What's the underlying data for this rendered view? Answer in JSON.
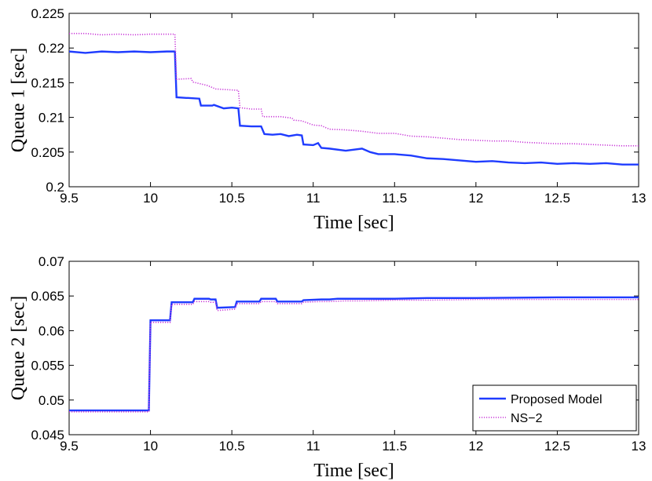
{
  "chart_data": [
    {
      "type": "line",
      "ylabel": "Queue 1 [sec]",
      "xlabel": "Time [sec]",
      "xlim": [
        9.5,
        13
      ],
      "ylim": [
        0.2,
        0.225
      ],
      "xticks": [
        9.5,
        10,
        10.5,
        11,
        11.5,
        12,
        12.5,
        13
      ],
      "xtick_labels": [
        "9.5",
        "10",
        "10.5",
        "11",
        "11.5",
        "12",
        "12.5",
        "13"
      ],
      "yticks": [
        0.2,
        0.205,
        0.21,
        0.215,
        0.22,
        0.225
      ],
      "ytick_labels": [
        "0.2",
        "0.205",
        "0.21",
        "0.215",
        "0.22",
        "0.225"
      ],
      "series": [
        {
          "name": "Proposed Model",
          "color": "#1f3cff",
          "style": "solid",
          "x": [
            9.5,
            9.6,
            9.7,
            9.8,
            9.9,
            10.0,
            10.1,
            10.15,
            10.16,
            10.22,
            10.23,
            10.3,
            10.31,
            10.38,
            10.39,
            10.45,
            10.5,
            10.54,
            10.55,
            10.62,
            10.63,
            10.68,
            10.7,
            10.75,
            10.8,
            10.85,
            10.9,
            10.93,
            10.94,
            11.0,
            11.03,
            11.05,
            11.1,
            11.2,
            11.3,
            11.35,
            11.4,
            11.5,
            11.6,
            11.7,
            11.8,
            11.9,
            12.0,
            12.1,
            12.2,
            12.3,
            12.4,
            12.5,
            12.6,
            12.7,
            12.8,
            12.9,
            13.0
          ],
          "y": [
            0.2195,
            0.2193,
            0.2195,
            0.2194,
            0.2195,
            0.2194,
            0.2195,
            0.2195,
            0.2129,
            0.2128,
            0.2128,
            0.2127,
            0.2117,
            0.2117,
            0.2118,
            0.2113,
            0.2114,
            0.2113,
            0.2088,
            0.2087,
            0.2087,
            0.2087,
            0.2076,
            0.2075,
            0.2076,
            0.2073,
            0.2075,
            0.2074,
            0.2061,
            0.206,
            0.2063,
            0.2056,
            0.2055,
            0.2052,
            0.2055,
            0.205,
            0.2047,
            0.2047,
            0.2045,
            0.2041,
            0.204,
            0.2038,
            0.2036,
            0.2037,
            0.2035,
            0.2034,
            0.2035,
            0.2033,
            0.2034,
            0.2033,
            0.2034,
            0.2032,
            0.2032
          ]
        },
        {
          "name": "NS-2",
          "color": "#c838d8",
          "style": "dotted",
          "x": [
            9.5,
            9.6,
            9.7,
            9.8,
            9.9,
            10.0,
            10.1,
            10.15,
            10.16,
            10.25,
            10.26,
            10.35,
            10.4,
            10.54,
            10.55,
            10.62,
            10.68,
            10.69,
            10.8,
            10.87,
            10.88,
            10.93,
            11.0,
            11.05,
            11.1,
            11.2,
            11.3,
            11.4,
            11.5,
            11.6,
            11.7,
            11.8,
            11.9,
            12.0,
            12.1,
            12.2,
            12.3,
            12.4,
            12.5,
            12.6,
            12.7,
            12.8,
            12.9,
            13.0
          ],
          "y": [
            0.2221,
            0.2221,
            0.2219,
            0.222,
            0.2219,
            0.222,
            0.222,
            0.222,
            0.2155,
            0.2156,
            0.2151,
            0.2146,
            0.2141,
            0.2139,
            0.2114,
            0.2112,
            0.2112,
            0.2101,
            0.2101,
            0.2099,
            0.2096,
            0.2095,
            0.2089,
            0.2088,
            0.2083,
            0.2082,
            0.208,
            0.2077,
            0.2077,
            0.2073,
            0.2072,
            0.207,
            0.2068,
            0.2067,
            0.2066,
            0.2066,
            0.2064,
            0.2063,
            0.2062,
            0.2062,
            0.2061,
            0.206,
            0.2059,
            0.2059
          ]
        }
      ]
    },
    {
      "type": "line",
      "ylabel": "Queue 2 [sec]",
      "xlabel": "Time [sec]",
      "xlim": [
        9.5,
        13
      ],
      "ylim": [
        0.045,
        0.07
      ],
      "xticks": [
        9.5,
        10,
        10.5,
        11,
        11.5,
        12,
        12.5,
        13
      ],
      "xtick_labels": [
        "9.5",
        "10",
        "10.5",
        "11",
        "11.5",
        "12",
        "12.5",
        "13"
      ],
      "yticks": [
        0.045,
        0.05,
        0.055,
        0.06,
        0.065,
        0.07
      ],
      "ytick_labels": [
        "0.045",
        "0.05",
        "0.055",
        "0.06",
        "0.065",
        "0.07"
      ],
      "legend": {
        "position": "bottom-right",
        "entries": [
          "Proposed Model",
          "NS−2"
        ]
      },
      "series": [
        {
          "name": "Proposed Model",
          "color": "#1f3cff",
          "style": "solid",
          "x": [
            9.5,
            9.99,
            10.0,
            10.12,
            10.13,
            10.26,
            10.27,
            10.36,
            10.37,
            10.4,
            10.41,
            10.52,
            10.53,
            10.67,
            10.68,
            10.77,
            10.78,
            10.93,
            10.94,
            11.05,
            11.1,
            11.15,
            11.2,
            11.3,
            11.5,
            11.7,
            12.0,
            12.5,
            13.0
          ],
          "y": [
            0.0485,
            0.0485,
            0.0615,
            0.0615,
            0.0641,
            0.0641,
            0.0646,
            0.0646,
            0.0645,
            0.0645,
            0.0633,
            0.0634,
            0.0642,
            0.0642,
            0.0646,
            0.0646,
            0.0642,
            0.0642,
            0.0644,
            0.0645,
            0.0645,
            0.0646,
            0.0646,
            0.0646,
            0.0646,
            0.0647,
            0.0647,
            0.0648,
            0.0648
          ]
        },
        {
          "name": "NS−2",
          "color": "#c838d8",
          "style": "dotted",
          "x": [
            9.5,
            9.99,
            10.0,
            10.12,
            10.13,
            10.26,
            10.27,
            10.36,
            10.37,
            10.4,
            10.41,
            10.52,
            10.53,
            10.67,
            10.68,
            10.77,
            10.78,
            10.93,
            10.94,
            11.05,
            11.1,
            11.2,
            11.3,
            11.5,
            11.7,
            12.0,
            12.5,
            13.0
          ],
          "y": [
            0.0483,
            0.0483,
            0.0612,
            0.0612,
            0.0638,
            0.0638,
            0.0642,
            0.0642,
            0.0641,
            0.0641,
            0.0629,
            0.0631,
            0.0639,
            0.0639,
            0.0642,
            0.0642,
            0.0639,
            0.0639,
            0.0641,
            0.0642,
            0.0642,
            0.0643,
            0.0643,
            0.0644,
            0.0644,
            0.0645,
            0.0645,
            0.0645
          ]
        }
      ]
    }
  ]
}
